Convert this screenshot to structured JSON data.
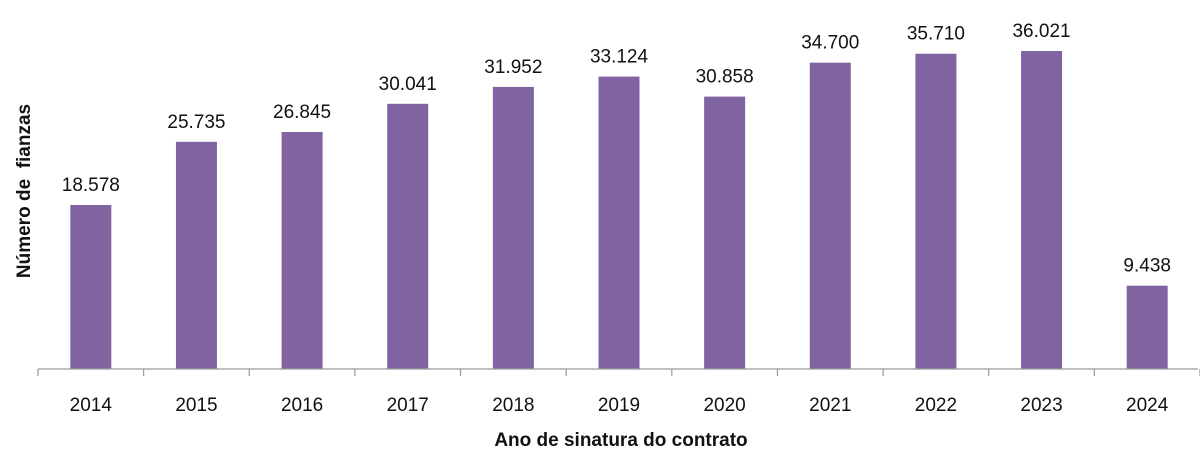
{
  "chart_data": {
    "type": "bar",
    "title": "",
    "xlabel": "Ano de sinatura do contrato",
    "ylabel": "Número de  fianzas",
    "categories": [
      "2014",
      "2015",
      "2016",
      "2017",
      "2018",
      "2019",
      "2020",
      "2021",
      "2022",
      "2023",
      "2024"
    ],
    "values": [
      18578,
      25735,
      26845,
      30041,
      31952,
      33124,
      30858,
      34700,
      35710,
      36021,
      9438
    ],
    "value_labels": [
      "18.578",
      "25.735",
      "26.845",
      "30.041",
      "31.952",
      "33.124",
      "30.858",
      "34.700",
      "35.710",
      "36.021",
      "9.438"
    ],
    "ylim": [
      0,
      40500
    ],
    "grid": false,
    "legend": "none",
    "bar_color": "#8064a2"
  }
}
